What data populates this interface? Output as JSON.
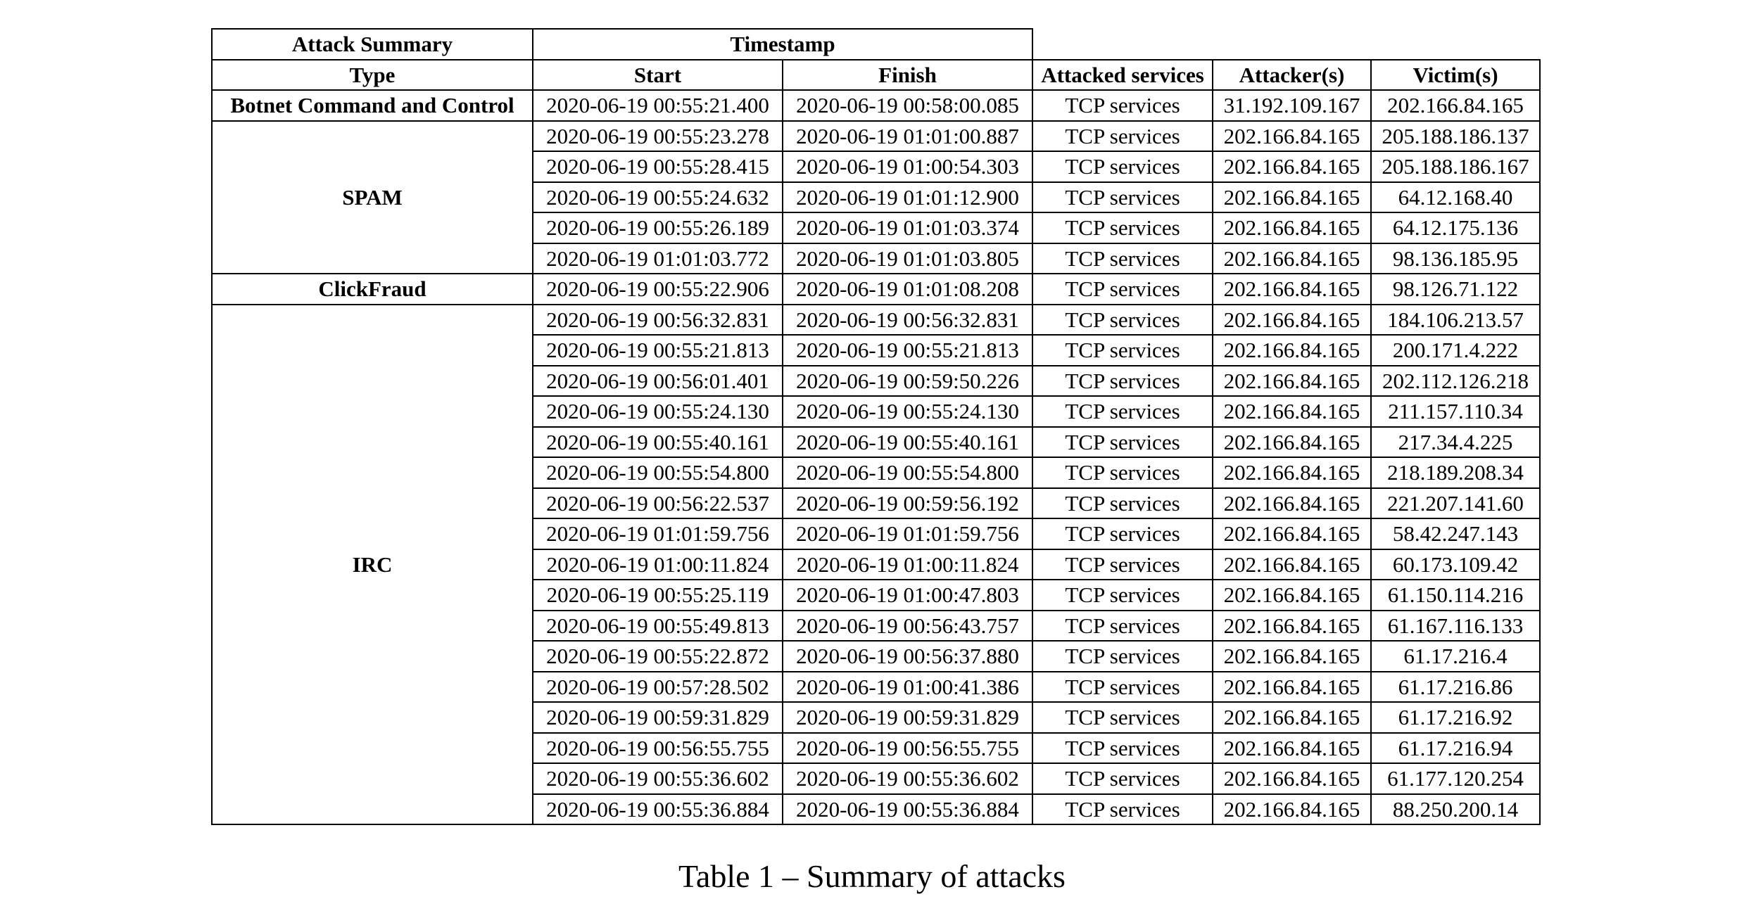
{
  "table": {
    "group_headers": {
      "summary": "Attack Summary",
      "timestamp": "Timestamp"
    },
    "columns": [
      "Type",
      "Start",
      "Finish",
      "Attacked services",
      "Attacker(s)",
      "Victim(s)"
    ],
    "groups": [
      {
        "type": "Botnet Command and Control",
        "rows": [
          [
            "2020-06-19 00:55:21.400",
            "2020-06-19 00:58:00.085",
            "TCP services",
            "31.192.109.167",
            "202.166.84.165"
          ]
        ]
      },
      {
        "type": "SPAM",
        "rows": [
          [
            "2020-06-19 00:55:23.278",
            "2020-06-19 01:01:00.887",
            "TCP services",
            "202.166.84.165",
            "205.188.186.137"
          ],
          [
            "2020-06-19 00:55:28.415",
            "2020-06-19 01:00:54.303",
            "TCP services",
            "202.166.84.165",
            "205.188.186.167"
          ],
          [
            "2020-06-19 00:55:24.632",
            "2020-06-19 01:01:12.900",
            "TCP services",
            "202.166.84.165",
            "64.12.168.40"
          ],
          [
            "2020-06-19 00:55:26.189",
            "2020-06-19 01:01:03.374",
            "TCP services",
            "202.166.84.165",
            "64.12.175.136"
          ],
          [
            "2020-06-19 01:01:03.772",
            "2020-06-19 01:01:03.805",
            "TCP services",
            "202.166.84.165",
            "98.136.185.95"
          ]
        ]
      },
      {
        "type": "ClickFraud",
        "rows": [
          [
            "2020-06-19 00:55:22.906",
            "2020-06-19 01:01:08.208",
            "TCP services",
            "202.166.84.165",
            "98.126.71.122"
          ]
        ]
      },
      {
        "type": "IRC",
        "rows": [
          [
            "2020-06-19 00:56:32.831",
            "2020-06-19 00:56:32.831",
            "TCP services",
            "202.166.84.165",
            "184.106.213.57"
          ],
          [
            "2020-06-19 00:55:21.813",
            "2020-06-19 00:55:21.813",
            "TCP services",
            "202.166.84.165",
            "200.171.4.222"
          ],
          [
            "2020-06-19 00:56:01.401",
            "2020-06-19 00:59:50.226",
            "TCP services",
            "202.166.84.165",
            "202.112.126.218"
          ],
          [
            "2020-06-19 00:55:24.130",
            "2020-06-19 00:55:24.130",
            "TCP services",
            "202.166.84.165",
            "211.157.110.34"
          ],
          [
            "2020-06-19 00:55:40.161",
            "2020-06-19 00:55:40.161",
            "TCP services",
            "202.166.84.165",
            "217.34.4.225"
          ],
          [
            "2020-06-19 00:55:54.800",
            "2020-06-19 00:55:54.800",
            "TCP services",
            "202.166.84.165",
            "218.189.208.34"
          ],
          [
            "2020-06-19 00:56:22.537",
            "2020-06-19 00:59:56.192",
            "TCP services",
            "202.166.84.165",
            "221.207.141.60"
          ],
          [
            "2020-06-19 01:01:59.756",
            "2020-06-19 01:01:59.756",
            "TCP services",
            "202.166.84.165",
            "58.42.247.143"
          ],
          [
            "2020-06-19 01:00:11.824",
            "2020-06-19 01:00:11.824",
            "TCP services",
            "202.166.84.165",
            "60.173.109.42"
          ],
          [
            "2020-06-19 00:55:25.119",
            "2020-06-19 01:00:47.803",
            "TCP services",
            "202.166.84.165",
            "61.150.114.216"
          ],
          [
            "2020-06-19 00:55:49.813",
            "2020-06-19 00:56:43.757",
            "TCP services",
            "202.166.84.165",
            "61.167.116.133"
          ],
          [
            "2020-06-19 00:55:22.872",
            "2020-06-19 00:56:37.880",
            "TCP services",
            "202.166.84.165",
            "61.17.216.4"
          ],
          [
            "2020-06-19 00:57:28.502",
            "2020-06-19 01:00:41.386",
            "TCP services",
            "202.166.84.165",
            "61.17.216.86"
          ],
          [
            "2020-06-19 00:59:31.829",
            "2020-06-19 00:59:31.829",
            "TCP services",
            "202.166.84.165",
            "61.17.216.92"
          ],
          [
            "2020-06-19 00:56:55.755",
            "2020-06-19 00:56:55.755",
            "TCP services",
            "202.166.84.165",
            "61.17.216.94"
          ],
          [
            "2020-06-19 00:55:36.602",
            "2020-06-19 00:55:36.602",
            "TCP services",
            "202.166.84.165",
            "61.177.120.254"
          ],
          [
            "2020-06-19 00:55:36.884",
            "2020-06-19 00:55:36.884",
            "TCP services",
            "202.166.84.165",
            "88.250.200.14"
          ]
        ]
      }
    ]
  },
  "caption": "Table 1 – Summary of attacks"
}
